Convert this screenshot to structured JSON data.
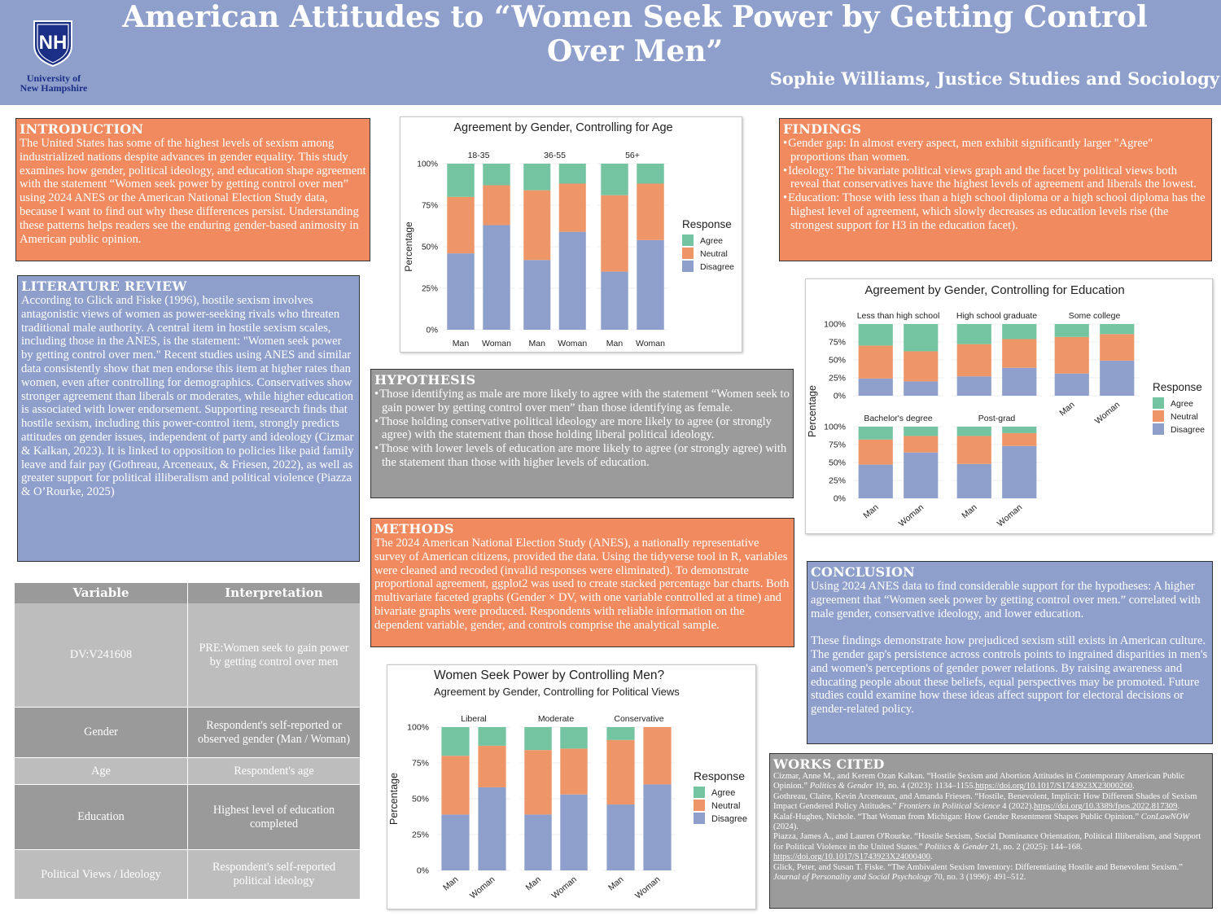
{
  "header": {
    "logo_text_line1": "University of",
    "logo_text_line2": "New Hampshire",
    "title_line1": "American Attitudes to “Women Seek Power by Getting Control",
    "title_line2": "Over Men”",
    "author": "Sophie Williams, Justice Studies and Sociology"
  },
  "introduction": {
    "heading": "INTRODUCTION",
    "body": "The United States has some of the highest levels of sexism among industrialized nations despite advances in gender equality. This study examines how gender, political ideology, and education shape agreement with the statement “Women seek power by getting control over men” using 2024 ANES or the American National Election Study data, because I want to find out why these differences persist. Understanding these patterns helps readers see the enduring gender-based animosity in American public opinion."
  },
  "literature_review": {
    "heading": "LITERATURE REVIEW",
    "body": "According to Glick and Fiske (1996), hostile sexism involves antagonistic views of women as power-seeking rivals who threaten traditional male authority. A central item in hostile sexism scales, including those in the ANES, is the statement: \"Women seek power by getting control over men.\" Recent studies using ANES and similar data consistently show that men endorse this item at higher rates than women, even after controlling for demographics. Conservatives show stronger agreement than liberals or moderates, while higher education is associated with lower endorsement. Supporting research finds that hostile sexism, including this power-control item, strongly predicts attitudes on gender issues, independent of party and ideology (Cizmar & Kalkan, 2023). It is linked to opposition to policies like paid family leave and fair pay (Gothreau, Arceneaux, & Friesen, 2022), as well as greater support for political illiberalism and political violence (Piazza & O’Rourke, 2025)"
  },
  "variables_table": {
    "headers": [
      "Variable",
      "Interpretation"
    ],
    "rows": [
      {
        "variable": "DV:V241608",
        "interpretation": "PRE:Women seek to gain power by getting control over men"
      },
      {
        "variable": "Gender",
        "interpretation": "Respondent's self-reported or observed gender (Man / Woman)"
      },
      {
        "variable": "Age",
        "interpretation": "Respondent's age"
      },
      {
        "variable": "Education",
        "interpretation": "Highest level of education completed"
      },
      {
        "variable": "Political Views / Ideology",
        "interpretation": "Respondent's self-reported political ideology"
      }
    ]
  },
  "hypothesis": {
    "heading": "HYPOTHESIS",
    "items": [
      "Those identifying as male are more likely to agree with the statement “Women seek to gain power by getting control over men” than those identifying as female.",
      "Those holding conservative political ideology are more likely to agree (or strongly agree) with the statement than those holding liberal political ideology.",
      "Those with lower levels of education are more likely to agree (or strongly agree) with the statement than those with higher levels of education."
    ]
  },
  "methods": {
    "heading": "METHODS",
    "body": "The 2024 American National Election Study (ANES), a nationally representative survey of American citizens, provided the data. Using the tidyverse tool in R, variables were cleaned and recoded (invalid responses were eliminated). To demonstrate proportional agreement, ggplot2 was used to create stacked percentage bar charts. Both multivariate faceted graphs (Gender × DV, with one variable controlled at a time) and bivariate graphs were produced. Respondents with reliable information on the dependent variable, gender, and controls comprise the analytical sample."
  },
  "findings": {
    "heading": "FINDINGS",
    "items": [
      "Gender gap: In almost every aspect, men exhibit significantly larger \"Agree\" proportions than women.",
      "Ideology: The bivariate political views graph and the facet by political views both reveal that conservatives have the highest levels of agreement and liberals the lowest.",
      "Education: Those with less than a high school diploma or a high school diploma has the highest level of agreement, which slowly decreases as education levels rise (the strongest support for H3 in the education facet)."
    ]
  },
  "conclusion": {
    "heading": "CONCLUSION",
    "body1": "Using 2024 ANES data to find considerable support for the hypotheses: A higher agreement that “Women seek power by getting control over men.”  correlated with male gender, conservative ideology, and lower education.",
    "body2": "These findings demonstrate how prejudiced sexism still exists in American culture. The gender gap's persistence across controls points to ingrained disparities in men's and women's perceptions of gender power relations. By raising awareness and educating people about these beliefs, equal perspectives may be promoted. Future studies could examine how these ideas affect support for electoral decisions or gender-related policy."
  },
  "works_cited": {
    "heading": "WORKS CITED",
    "refs": [
      {
        "text": "Cizmar, Anne M., and Kerem Ozan Kalkan. “Hostile Sexism and Abortion Attitudes in Contemporary American Public Opinion.” ",
        "journal": "Politics & Gender",
        "rest": " 19, no. 4 (2023): 1134–1155.",
        "link": "https://doi.org/10.1017/S1743923X23000260",
        "after": "."
      },
      {
        "text": "Gothreau, Claire, Kevin Arceneaux, and Amanda Friesen. “Hostile, Benevolent, Implicit: How Different Shades of Sexism Impact Gendered Policy Attitudes.” ",
        "journal": "Frontiers in Political Science",
        "rest": " 4 (2022).",
        "link": "https://doi.org/10.3389/fpos.2022.817309",
        "after": "."
      },
      {
        "text": "Kalaf-Hughes, Nichole. “That Woman from Michigan: How Gender Resentment Shapes Public Opinion.” ",
        "journal": "ConLawNOW",
        "rest": " (2024).",
        "link": "",
        "after": ""
      },
      {
        "text": "Piazza, James A., and Lauren O'Rourke. “Hostile Sexism, Social Dominance Orientation, Political Illiberalism, and Support for Political Violence in the United States.” ",
        "journal": "Politics & Gender",
        "rest": " 21, no. 2 (2025): 144–168. ",
        "link": "https://doi.org/10.1017/S1743923X24000400",
        "after": "."
      },
      {
        "text": "Glick, Peter, and Susan T. Fiske. “The Ambivalent Sexism Inventory: Differentiating Hostile and Benevolent Sexism.” ",
        "journal": "Journal of Personality and Social Psychology",
        "rest": " 70, no. 3 (1996): 491–512.",
        "link": "",
        "after": ""
      }
    ]
  },
  "colors": {
    "agree": "#74c4a2",
    "neutral": "#ee9668",
    "disagree": "#8f9fcb",
    "orange_box": "#f28a5f",
    "blue_box": "#8f9fcb",
    "gray_box": "#9b9b9b"
  },
  "chart_data": [
    {
      "id": "age",
      "type": "bar",
      "stacked": true,
      "title": "Agreement by Gender, Controlling for Age",
      "ylabel": "Percentage",
      "yticks": [
        "0%",
        "25%",
        "50%",
        "75%",
        "100%"
      ],
      "legend_title": "Response",
      "legend": [
        "Agree",
        "Neutral",
        "Disagree"
      ],
      "facets": [
        {
          "name": "18-35",
          "categories": [
            "Man",
            "Woman"
          ],
          "agree": [
            20,
            13
          ],
          "neutral": [
            34,
            24
          ],
          "disagree": [
            46,
            63
          ]
        },
        {
          "name": "36-55",
          "categories": [
            "Man",
            "Woman"
          ],
          "agree": [
            16,
            12
          ],
          "neutral": [
            42,
            29
          ],
          "disagree": [
            42,
            59
          ]
        },
        {
          "name": "56+",
          "categories": [
            "Man",
            "Woman"
          ],
          "agree": [
            19,
            12
          ],
          "neutral": [
            46,
            34
          ],
          "disagree": [
            35,
            54
          ]
        }
      ]
    },
    {
      "id": "education",
      "type": "bar",
      "stacked": true,
      "title": "Agreement by Gender, Controlling for Education",
      "ylabel": "Percentage",
      "yticks": [
        "0%",
        "25%",
        "50%",
        "75%",
        "100%"
      ],
      "legend_title": "Response",
      "legend": [
        "Agree",
        "Neutral",
        "Disagree"
      ],
      "facets": [
        {
          "name": "Less than high school",
          "categories": [
            "Man",
            "Woman"
          ],
          "agree": [
            30,
            38
          ],
          "neutral": [
            46,
            42
          ],
          "disagree": [
            24,
            20
          ]
        },
        {
          "name": "High school graduate",
          "categories": [
            "Man",
            "Woman"
          ],
          "agree": [
            28,
            21
          ],
          "neutral": [
            45,
            40
          ],
          "disagree": [
            27,
            39
          ]
        },
        {
          "name": "Some college",
          "categories": [
            "Man",
            "Woman"
          ],
          "agree": [
            18,
            14
          ],
          "neutral": [
            51,
            37
          ],
          "disagree": [
            31,
            49
          ]
        },
        {
          "name": "Bachelor's degree",
          "categories": [
            "Man",
            "Woman"
          ],
          "agree": [
            18,
            13
          ],
          "neutral": [
            35,
            23
          ],
          "disagree": [
            47,
            64
          ]
        },
        {
          "name": "Post-grad",
          "categories": [
            "Man",
            "Woman"
          ],
          "agree": [
            13,
            9
          ],
          "neutral": [
            39,
            18
          ],
          "disagree": [
            48,
            73
          ]
        }
      ]
    },
    {
      "id": "political",
      "type": "bar",
      "stacked": true,
      "title": "Women Seek Power by Controlling Men?",
      "subtitle": "Agreement by Gender, Controlling for Political Views",
      "ylabel": "Percentage",
      "yticks": [
        "0%",
        "25%",
        "50%",
        "75%",
        "100%"
      ],
      "legend_title": "Response",
      "legend": [
        "Agree",
        "Neutral",
        "Disagree"
      ],
      "facets": [
        {
          "name": "Liberal",
          "categories": [
            "Man",
            "Woman"
          ],
          "agree": [
            20,
            13
          ],
          "neutral": [
            41,
            29
          ],
          "disagree": [
            39,
            58
          ]
        },
        {
          "name": "Moderate",
          "categories": [
            "Man",
            "Woman"
          ],
          "agree": [
            16,
            15
          ],
          "neutral": [
            45,
            32
          ],
          "disagree": [
            39,
            53
          ]
        },
        {
          "name": "Conservative",
          "categories": [
            "Man",
            "Woman"
          ],
          "agree": [
            9,
            0
          ],
          "neutral": [
            45,
            40
          ],
          "disagree": [
            46,
            60
          ]
        }
      ]
    }
  ]
}
